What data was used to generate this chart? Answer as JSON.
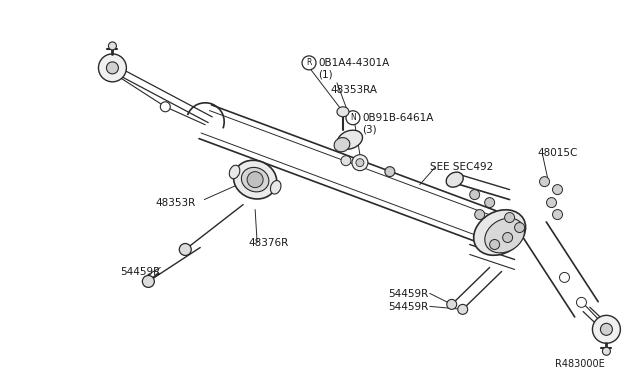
{
  "bg_color": "#ffffff",
  "line_color": "#2a2a2a",
  "text_color": "#1a1a1a",
  "ref_code": "R483000E",
  "figsize": [
    6.4,
    3.72
  ],
  "dpi": 100,
  "lbl_R_text": "0B1A4-4301A",
  "lbl_R_sub": "(1)",
  "lbl_48353RA": "48353RA",
  "lbl_N_text": "0B91B-6461A",
  "lbl_N_sub": "(3)",
  "lbl_SEC": "SEE SEC492",
  "lbl_48015C": "48015C",
  "lbl_48353R": "48353R",
  "lbl_48376R": "48376R",
  "lbl_54459R_a": "54459R",
  "lbl_54459R_b": "54459R",
  "lbl_54459R_c": "54459R"
}
